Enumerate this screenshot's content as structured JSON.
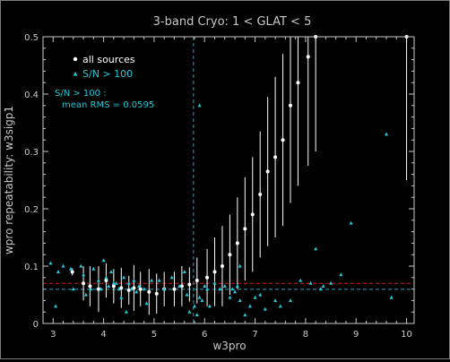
{
  "chart_data": {
    "type": "scatter",
    "title": "3-band Cryo:  1 < GLAT < 5",
    "xlabel": "w3pro",
    "ylabel": "wpro repeatability: w3sigp1",
    "xlim": [
      2.8,
      10.15
    ],
    "ylim": [
      0,
      0.5
    ],
    "xticks": [
      "3",
      "4",
      "5",
      "6",
      "7",
      "8",
      "9",
      "10"
    ],
    "yticks": [
      "0",
      "0.1",
      "0.2",
      "0.3",
      "0.4",
      "0.5"
    ],
    "legend": {
      "position": "top-left",
      "all_label": "all sources",
      "sn_label": "S/N > 100"
    },
    "annotation": {
      "line1": "S/N > 100 :",
      "line2": "mean RMS =  0.0595"
    },
    "ref_lines": {
      "sn_mean_rms": 0.0595,
      "all_mean": 0.07,
      "sn_vertical_x": 5.78
    },
    "colors": {
      "all": "#ffffff",
      "sn": "#22c8d8",
      "sn_line": "#22a8b8",
      "all_line": "#d02020",
      "axis": "#c8c8c8"
    },
    "series": [
      {
        "key": "all",
        "marker": "circle",
        "x": [
          3.38,
          3.6,
          3.73,
          3.9,
          4.05,
          4.2,
          4.35,
          4.5,
          4.6,
          4.73,
          4.9,
          5.05,
          5.2,
          5.4,
          5.55,
          5.7,
          5.85,
          6.05,
          6.2,
          6.35,
          6.5,
          6.65,
          6.8,
          6.95,
          7.1,
          7.25,
          7.4,
          7.55,
          7.7,
          7.85,
          8.05,
          8.2,
          10.0
        ],
        "y": [
          0.09,
          0.07,
          0.065,
          0.06,
          0.075,
          0.065,
          0.062,
          0.058,
          0.062,
          0.06,
          0.055,
          0.052,
          0.06,
          0.06,
          0.065,
          0.068,
          0.075,
          0.08,
          0.09,
          0.1,
          0.12,
          0.14,
          0.165,
          0.19,
          0.225,
          0.265,
          0.29,
          0.32,
          0.38,
          0.42,
          0.465,
          0.5,
          0.5
        ],
        "err": [
          0.006,
          0.03,
          0.035,
          0.04,
          0.03,
          0.03,
          0.035,
          0.025,
          0.04,
          0.03,
          0.04,
          0.035,
          0.03,
          0.03,
          0.035,
          0.03,
          0.04,
          0.05,
          0.06,
          0.07,
          0.07,
          0.08,
          0.09,
          0.1,
          0.11,
          0.13,
          0.14,
          0.15,
          0.17,
          0.18,
          0.19,
          0.2,
          0.25
        ]
      },
      {
        "key": "sn",
        "marker": "triangle",
        "x": [
          2.95,
          3.05,
          3.1,
          3.2,
          3.35,
          3.4,
          3.55,
          3.6,
          3.65,
          3.75,
          3.8,
          3.9,
          3.95,
          4.0,
          4.05,
          4.1,
          4.15,
          4.2,
          4.25,
          4.3,
          4.35,
          4.4,
          4.45,
          4.5,
          4.55,
          4.6,
          4.65,
          4.7,
          4.8,
          4.85,
          4.95,
          5.1,
          5.2,
          5.35,
          5.5,
          5.6,
          5.65,
          5.7,
          5.8,
          5.85,
          5.9,
          5.95,
          6.0,
          6.05,
          6.1,
          6.2,
          6.3,
          6.4,
          6.5,
          6.55,
          6.6,
          6.65,
          6.7,
          6.8,
          6.9,
          7.0,
          7.1,
          7.2,
          7.4,
          7.5,
          7.7,
          7.9,
          8.1,
          8.3,
          8.35,
          8.5,
          8.7,
          8.9,
          9.6,
          9.7,
          8.2,
          6.7,
          5.9
        ],
        "y": [
          0.105,
          0.03,
          0.09,
          0.1,
          0.095,
          0.06,
          0.1,
          0.085,
          0.05,
          0.06,
          0.095,
          0.075,
          0.06,
          0.11,
          0.08,
          0.065,
          0.09,
          0.07,
          0.07,
          0.06,
          0.045,
          0.08,
          0.02,
          0.07,
          0.06,
          0.075,
          0.055,
          0.065,
          0.06,
          0.035,
          0.075,
          0.075,
          0.06,
          0.08,
          0.065,
          0.09,
          0.05,
          0.02,
          0.03,
          0.015,
          0.045,
          0.04,
          0.065,
          0.06,
          0.03,
          0.07,
          0.06,
          0.065,
          0.045,
          0.06,
          0.055,
          0.065,
          0.04,
          0.015,
          0.03,
          0.045,
          0.05,
          0.025,
          0.04,
          0.03,
          0.04,
          0.075,
          0.07,
          0.06,
          0.065,
          0.07,
          0.085,
          0.175,
          0.33,
          0.045,
          0.13,
          0.1,
          0.38
        ]
      }
    ]
  }
}
